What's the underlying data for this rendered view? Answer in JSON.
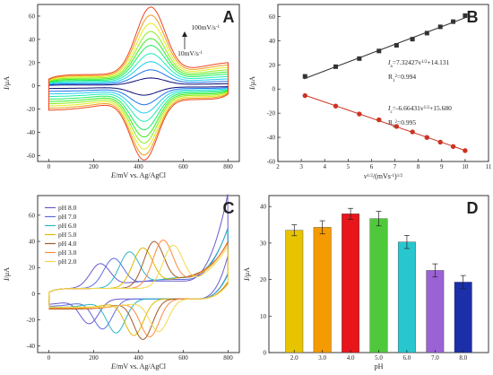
{
  "colors": {
    "axis": "#222222",
    "line_black": "#333333",
    "line_red": "#cc3322",
    "ph_series": [
      "#6a5acd",
      "#5e6fe0",
      "#2ab6c8",
      "#e0b800",
      "#a05a2c",
      "#ff8a3d",
      "#f2d84a"
    ],
    "bars": [
      "#e8c400",
      "#f59a00",
      "#e8151b",
      "#4fc93b",
      "#28c7cf",
      "#9b62d6",
      "#1a2fa8"
    ]
  },
  "chart_data": [
    {
      "id": "A",
      "type": "line",
      "panel_label": "A",
      "xlabel_italic": "E",
      "xlabel_rest": "/mV vs. Ag/AgCl",
      "ylabel_italic": "I",
      "ylabel_rest": "/μA",
      "xlim": [
        -50,
        850
      ],
      "ylim": [
        -65,
        70
      ],
      "xticks": [
        0,
        200,
        400,
        600,
        800
      ],
      "yticks": [
        -60,
        -40,
        -20,
        0,
        20,
        40,
        60
      ],
      "annotation_top": "100mV/s",
      "annotation_bottom": "10mV/s",
      "series": [
        {
          "scan_rate": 10,
          "ipa": 6,
          "ipc": -7,
          "cap": 0.8
        },
        {
          "scan_rate": 20,
          "ipa": 12,
          "ipc": -14,
          "cap": 1.8
        },
        {
          "scan_rate": 30,
          "ipa": 18,
          "ipc": -20,
          "cap": 2.8
        },
        {
          "scan_rate": 40,
          "ipa": 24,
          "ipc": -26,
          "cap": 3.8
        },
        {
          "scan_rate": 50,
          "ipa": 30,
          "ipc": -32,
          "cap": 4.8
        },
        {
          "scan_rate": 60,
          "ipa": 35,
          "ipc": -37,
          "cap": 5.8
        },
        {
          "scan_rate": 70,
          "ipa": 40,
          "ipc": -41,
          "cap": 6.8
        },
        {
          "scan_rate": 80,
          "ipa": 46,
          "ipc": -45,
          "cap": 7.8
        },
        {
          "scan_rate": 90,
          "ipa": 52,
          "ipc": -49,
          "cap": 8.8
        },
        {
          "scan_rate": 100,
          "ipa": 58,
          "ipc": -52,
          "cap": 9.8
        }
      ]
    },
    {
      "id": "B",
      "type": "scatter",
      "panel_label": "B",
      "xlabel": "v1/2/(mVs-1)1/2",
      "ylabel_italic": "I",
      "ylabel_rest": "/μA",
      "xlim": [
        2,
        11
      ],
      "ylim": [
        -60,
        70
      ],
      "xticks": [
        2,
        3,
        4,
        5,
        6,
        7,
        8,
        9,
        10,
        11
      ],
      "yticks": [
        -60,
        -40,
        -20,
        0,
        20,
        40,
        60
      ],
      "series": [
        {
          "name": "anodic",
          "x": [
            3.16,
            4.47,
            5.48,
            6.32,
            7.07,
            7.75,
            8.37,
            8.94,
            9.49,
            10.0
          ],
          "y": [
            10.5,
            18.5,
            25.2,
            31.5,
            36.2,
            41.3,
            46.3,
            51.5,
            55.8,
            60.8
          ]
        },
        {
          "name": "cathodic",
          "x": [
            3.16,
            4.47,
            5.48,
            6.32,
            7.07,
            7.75,
            8.37,
            8.94,
            9.49,
            10.0
          ],
          "y": [
            -5.5,
            -14.1,
            -20.7,
            -25.5,
            -31.0,
            -35.5,
            -40.1,
            -44.0,
            -47.6,
            -51.0
          ]
        }
      ],
      "fit1_eq": "Ia=7.32427v1/2+14.131",
      "fit1_r2": "R12=0.994",
      "fit2_eq": "Ic=-6.66431v1/2+15.680",
      "fit2_r2": "R22=0.995"
    },
    {
      "id": "C",
      "type": "line",
      "panel_label": "C",
      "xlabel_italic": "E",
      "xlabel_rest": "/mV vs. Ag/AgCl",
      "ylabel_italic": "I",
      "ylabel_rest": "/μA",
      "xlim": [
        -50,
        850
      ],
      "ylim": [
        -45,
        75
      ],
      "xticks": [
        0,
        200,
        400,
        600,
        800
      ],
      "yticks": [
        -40,
        -20,
        0,
        20,
        40,
        60
      ],
      "legend": [
        "pH 8.0",
        "pH 7.0",
        "pH 6.0",
        "pH 5.0",
        "pH 4.0",
        "pH 3.0",
        "pH 2.0"
      ],
      "legend_position": "top-left",
      "series": [
        {
          "name": "pH 8.0",
          "epa": 230,
          "ipa": 19,
          "epc": 180,
          "ipc": -19,
          "end": 68
        },
        {
          "name": "pH 7.0",
          "epa": 290,
          "ipa": 23,
          "epc": 240,
          "ipc": -23,
          "end": 40
        },
        {
          "name": "pH 6.0",
          "epa": 360,
          "ipa": 28,
          "epc": 300,
          "ipc": -26,
          "end": 38
        },
        {
          "name": "pH 5.0",
          "epa": 420,
          "ipa": 31,
          "epc": 380,
          "ipc": -28,
          "end": 27
        },
        {
          "name": "pH 4.0",
          "epa": 470,
          "ipa": 36,
          "epc": 420,
          "ipc": -31,
          "end": 25
        },
        {
          "name": "pH 3.0",
          "epa": 510,
          "ipa": 37,
          "epc": 450,
          "ipc": -29,
          "end": 24
        },
        {
          "name": "pH 2.0",
          "epa": 555,
          "ipa": 33,
          "epc": 490,
          "ipc": -25,
          "end": 23
        }
      ]
    },
    {
      "id": "D",
      "type": "bar",
      "panel_label": "D",
      "xlabel": "pH",
      "ylabel_italic": "I",
      "ylabel_rest": "/μA",
      "categories": [
        "2.0",
        "3.0",
        "4.0",
        "5.0",
        "6.0",
        "7.0",
        "8.0"
      ],
      "values": [
        33.5,
        34.3,
        38.0,
        36.7,
        30.3,
        22.5,
        19.3
      ],
      "errors": [
        1.5,
        1.8,
        1.5,
        2.0,
        1.8,
        1.8,
        1.8
      ],
      "ylim": [
        0,
        43
      ],
      "yticks": [
        0,
        10,
        20,
        30,
        40
      ]
    }
  ]
}
